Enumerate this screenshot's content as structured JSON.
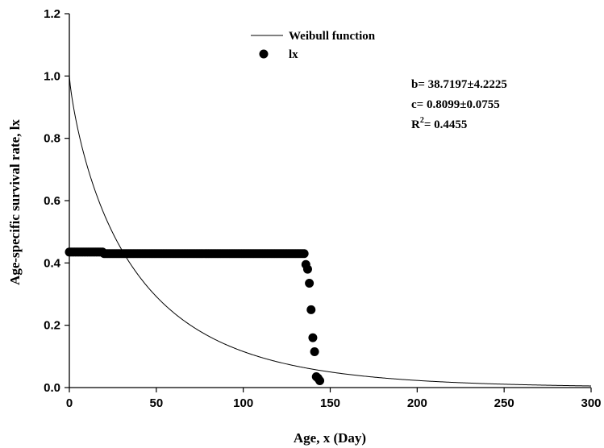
{
  "chart_data": {
    "type": "scatter",
    "xlabel": "Age, x (Day)",
    "ylabel": "Age-specific survival rate, lx",
    "xlim": [
      0,
      300
    ],
    "ylim": [
      0,
      1.2
    ],
    "x_ticks": [
      "0",
      "50",
      "100",
      "150",
      "200",
      "250",
      "300"
    ],
    "y_ticks": [
      "0.0",
      "0.2",
      "0.4",
      "0.6",
      "0.8",
      "1.0",
      "1.2"
    ],
    "grid": false,
    "legend_position": "top-center",
    "series": [
      {
        "name": "Weibull function",
        "kind": "line",
        "color": "#000000",
        "model": {
          "b": 38.7197,
          "c": 0.8099
        }
      },
      {
        "name": "lx",
        "kind": "scatter",
        "color": "#000000",
        "x": [
          0,
          1,
          2,
          3,
          4,
          5,
          6,
          7,
          8,
          9,
          10,
          11,
          12,
          13,
          14,
          15,
          16,
          17,
          18,
          19,
          20,
          21,
          22,
          23,
          24,
          25,
          26,
          27,
          28,
          29,
          30,
          31,
          32,
          33,
          34,
          35,
          36,
          37,
          38,
          39,
          40,
          41,
          42,
          43,
          44,
          45,
          46,
          47,
          48,
          49,
          50,
          51,
          52,
          53,
          54,
          55,
          56,
          57,
          58,
          59,
          60,
          61,
          62,
          63,
          64,
          65,
          66,
          67,
          68,
          69,
          70,
          71,
          72,
          73,
          74,
          75,
          76,
          77,
          78,
          79,
          80,
          81,
          82,
          83,
          84,
          85,
          86,
          87,
          88,
          89,
          90,
          91,
          92,
          93,
          94,
          95,
          96,
          97,
          98,
          99,
          100,
          101,
          102,
          103,
          104,
          105,
          106,
          107,
          108,
          109,
          110,
          111,
          112,
          113,
          114,
          115,
          116,
          117,
          118,
          119,
          120,
          121,
          122,
          123,
          124,
          125,
          126,
          127,
          128,
          129,
          130,
          131,
          132,
          133,
          134,
          135,
          136,
          137,
          138,
          139,
          140,
          141,
          142,
          143,
          144
        ],
        "y": [
          0.435,
          0.435,
          0.435,
          0.435,
          0.435,
          0.435,
          0.435,
          0.435,
          0.435,
          0.435,
          0.435,
          0.435,
          0.435,
          0.435,
          0.435,
          0.435,
          0.435,
          0.435,
          0.435,
          0.435,
          0.43,
          0.43,
          0.43,
          0.43,
          0.43,
          0.43,
          0.43,
          0.43,
          0.43,
          0.43,
          0.43,
          0.43,
          0.43,
          0.43,
          0.43,
          0.43,
          0.43,
          0.43,
          0.43,
          0.43,
          0.43,
          0.43,
          0.43,
          0.43,
          0.43,
          0.43,
          0.43,
          0.43,
          0.43,
          0.43,
          0.43,
          0.43,
          0.43,
          0.43,
          0.43,
          0.43,
          0.43,
          0.43,
          0.43,
          0.43,
          0.43,
          0.43,
          0.43,
          0.43,
          0.43,
          0.43,
          0.43,
          0.43,
          0.43,
          0.43,
          0.43,
          0.43,
          0.43,
          0.43,
          0.43,
          0.43,
          0.43,
          0.43,
          0.43,
          0.43,
          0.43,
          0.43,
          0.43,
          0.43,
          0.43,
          0.43,
          0.43,
          0.43,
          0.43,
          0.43,
          0.43,
          0.43,
          0.43,
          0.43,
          0.43,
          0.43,
          0.43,
          0.43,
          0.43,
          0.43,
          0.43,
          0.43,
          0.43,
          0.43,
          0.43,
          0.43,
          0.43,
          0.43,
          0.43,
          0.43,
          0.43,
          0.43,
          0.43,
          0.43,
          0.43,
          0.43,
          0.43,
          0.43,
          0.43,
          0.43,
          0.43,
          0.43,
          0.43,
          0.43,
          0.43,
          0.43,
          0.43,
          0.43,
          0.43,
          0.43,
          0.43,
          0.43,
          0.43,
          0.43,
          0.43,
          0.43,
          0.395,
          0.38,
          0.335,
          0.25,
          0.16,
          0.115,
          0.035,
          0.03,
          0.022
        ]
      }
    ],
    "annotations": [
      "b= 38.7197±4.2225",
      "c= 0.8099±0.0755",
      "R",
      "2",
      "= 0.4455"
    ]
  }
}
